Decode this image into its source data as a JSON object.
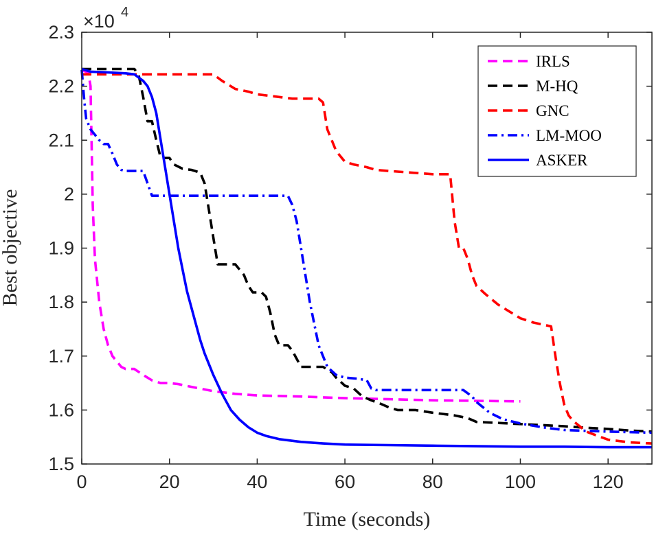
{
  "chart_data": {
    "type": "line",
    "title": "",
    "xlabel": "Time (seconds)",
    "ylabel": "Best objective",
    "xlim": [
      0,
      130
    ],
    "ylim": [
      1.5,
      2.3
    ],
    "xticks": [
      0,
      20,
      40,
      60,
      80,
      100,
      120
    ],
    "yticks": [
      1.5,
      1.6,
      1.7,
      1.8,
      1.9,
      2.0,
      2.1,
      2.2,
      2.3
    ],
    "xtick_labels": [
      "0",
      "20",
      "40",
      "60",
      "80",
      "100",
      "120"
    ],
    "ytick_labels": [
      "1.5",
      "1.6",
      "1.7",
      "1.8",
      "1.9",
      "2",
      "2.1",
      "2.2",
      "2.3"
    ],
    "y_exponent_base": "×10",
    "y_exponent_power": "4",
    "legend_position": "top-right",
    "grid": false,
    "series": [
      {
        "name": "IRLS",
        "color": "#ff00ff",
        "dash": "dashed",
        "points": [
          [
            0,
            2.23
          ],
          [
            1.5,
            2.225
          ],
          [
            2,
            2.2
          ],
          [
            2.5,
            1.98
          ],
          [
            3,
            1.88
          ],
          [
            4,
            1.8
          ],
          [
            5,
            1.75
          ],
          [
            6,
            1.72
          ],
          [
            7,
            1.7
          ],
          [
            8,
            1.69
          ],
          [
            9,
            1.68
          ],
          [
            10,
            1.676
          ],
          [
            12,
            1.676
          ],
          [
            14,
            1.665
          ],
          [
            16,
            1.655
          ],
          [
            18,
            1.65
          ],
          [
            20,
            1.65
          ],
          [
            22,
            1.648
          ],
          [
            25,
            1.643
          ],
          [
            30,
            1.635
          ],
          [
            35,
            1.63
          ],
          [
            40,
            1.627
          ],
          [
            50,
            1.625
          ],
          [
            60,
            1.622
          ],
          [
            70,
            1.62
          ],
          [
            80,
            1.618
          ],
          [
            90,
            1.617
          ],
          [
            100,
            1.616
          ]
        ]
      },
      {
        "name": "M-HQ",
        "color": "#000000",
        "dash": "dashed",
        "points": [
          [
            0,
            2.232
          ],
          [
            12,
            2.232
          ],
          [
            13,
            2.22
          ],
          [
            14,
            2.18
          ],
          [
            15,
            2.135
          ],
          [
            16,
            2.135
          ],
          [
            17,
            2.1
          ],
          [
            18,
            2.067
          ],
          [
            20,
            2.067
          ],
          [
            21,
            2.055
          ],
          [
            23,
            2.047
          ],
          [
            25,
            2.045
          ],
          [
            27,
            2.04
          ],
          [
            28,
            2.02
          ],
          [
            29,
            1.97
          ],
          [
            30,
            1.92
          ],
          [
            31,
            1.87
          ],
          [
            35,
            1.87
          ],
          [
            36,
            1.86
          ],
          [
            37,
            1.85
          ],
          [
            38,
            1.83
          ],
          [
            39,
            1.818
          ],
          [
            41,
            1.818
          ],
          [
            42,
            1.81
          ],
          [
            43,
            1.78
          ],
          [
            44,
            1.74
          ],
          [
            45,
            1.72
          ],
          [
            47,
            1.72
          ],
          [
            48,
            1.71
          ],
          [
            50,
            1.68
          ],
          [
            55,
            1.68
          ],
          [
            57,
            1.67
          ],
          [
            58,
            1.66
          ],
          [
            60,
            1.645
          ],
          [
            62,
            1.64
          ],
          [
            64,
            1.625
          ],
          [
            66,
            1.618
          ],
          [
            68,
            1.612
          ],
          [
            70,
            1.605
          ],
          [
            72,
            1.6
          ],
          [
            76,
            1.6
          ],
          [
            80,
            1.595
          ],
          [
            85,
            1.59
          ],
          [
            88,
            1.585
          ],
          [
            90,
            1.578
          ],
          [
            95,
            1.576
          ],
          [
            100,
            1.574
          ],
          [
            105,
            1.572
          ],
          [
            110,
            1.57
          ],
          [
            115,
            1.567
          ],
          [
            120,
            1.565
          ],
          [
            125,
            1.562
          ],
          [
            130,
            1.56
          ]
        ]
      },
      {
        "name": "GNC",
        "color": "#ff0000",
        "dash": "dashed",
        "points": [
          [
            0,
            2.222
          ],
          [
            30,
            2.222
          ],
          [
            32,
            2.21
          ],
          [
            35,
            2.195
          ],
          [
            38,
            2.19
          ],
          [
            40,
            2.185
          ],
          [
            45,
            2.18
          ],
          [
            48,
            2.177
          ],
          [
            54,
            2.177
          ],
          [
            55,
            2.17
          ],
          [
            56,
            2.12
          ],
          [
            58,
            2.08
          ],
          [
            60,
            2.06
          ],
          [
            62,
            2.055
          ],
          [
            65,
            2.05
          ],
          [
            67,
            2.045
          ],
          [
            70,
            2.043
          ],
          [
            75,
            2.04
          ],
          [
            80,
            2.037
          ],
          [
            84,
            2.037
          ],
          [
            85,
            1.95
          ],
          [
            86,
            1.9
          ],
          [
            87,
            1.9
          ],
          [
            88,
            1.88
          ],
          [
            89,
            1.85
          ],
          [
            90,
            1.83
          ],
          [
            92,
            1.815
          ],
          [
            95,
            1.795
          ],
          [
            98,
            1.78
          ],
          [
            100,
            1.77
          ],
          [
            103,
            1.762
          ],
          [
            107,
            1.755
          ],
          [
            108,
            1.7
          ],
          [
            109,
            1.65
          ],
          [
            110,
            1.61
          ],
          [
            111,
            1.59
          ],
          [
            112,
            1.58
          ],
          [
            115,
            1.56
          ],
          [
            120,
            1.545
          ],
          [
            125,
            1.54
          ],
          [
            130,
            1.538
          ]
        ]
      },
      {
        "name": "LM-MOO",
        "color": "#0000ff",
        "dash": "dashdot",
        "points": [
          [
            0,
            2.23
          ],
          [
            0.5,
            2.18
          ],
          [
            1,
            2.14
          ],
          [
            2,
            2.12
          ],
          [
            3,
            2.11
          ],
          [
            4,
            2.1
          ],
          [
            5,
            2.093
          ],
          [
            6,
            2.093
          ],
          [
            7,
            2.075
          ],
          [
            8,
            2.055
          ],
          [
            9,
            2.045
          ],
          [
            10,
            2.043
          ],
          [
            14,
            2.043
          ],
          [
            15,
            2.02
          ],
          [
            16,
            1.997
          ],
          [
            47,
            1.997
          ],
          [
            48,
            1.98
          ],
          [
            49,
            1.95
          ],
          [
            50,
            1.9
          ],
          [
            51,
            1.85
          ],
          [
            52,
            1.8
          ],
          [
            53,
            1.76
          ],
          [
            54,
            1.72
          ],
          [
            56,
            1.68
          ],
          [
            58,
            1.665
          ],
          [
            60,
            1.66
          ],
          [
            63,
            1.658
          ],
          [
            65,
            1.655
          ],
          [
            66,
            1.64
          ],
          [
            67,
            1.637
          ],
          [
            87,
            1.637
          ],
          [
            89,
            1.625
          ],
          [
            90,
            1.615
          ],
          [
            93,
            1.595
          ],
          [
            96,
            1.583
          ],
          [
            100,
            1.575
          ],
          [
            105,
            1.568
          ],
          [
            110,
            1.563
          ],
          [
            120,
            1.56
          ],
          [
            130,
            1.558
          ]
        ]
      },
      {
        "name": "ASKER",
        "color": "#0000ff",
        "dash": "solid",
        "points": [
          [
            0,
            2.232
          ],
          [
            2,
            2.227
          ],
          [
            5,
            2.226
          ],
          [
            10,
            2.224
          ],
          [
            12,
            2.222
          ],
          [
            14,
            2.21
          ],
          [
            15,
            2.2
          ],
          [
            16,
            2.18
          ],
          [
            17,
            2.15
          ],
          [
            18,
            2.1
          ],
          [
            19,
            2.05
          ],
          [
            20,
            2.0
          ],
          [
            21,
            1.95
          ],
          [
            22,
            1.9
          ],
          [
            23,
            1.86
          ],
          [
            24,
            1.82
          ],
          [
            25,
            1.79
          ],
          [
            26,
            1.76
          ],
          [
            27,
            1.73
          ],
          [
            28,
            1.705
          ],
          [
            30,
            1.665
          ],
          [
            32,
            1.63
          ],
          [
            34,
            1.6
          ],
          [
            36,
            1.582
          ],
          [
            38,
            1.568
          ],
          [
            40,
            1.558
          ],
          [
            42,
            1.552
          ],
          [
            45,
            1.546
          ],
          [
            50,
            1.541
          ],
          [
            55,
            1.538
          ],
          [
            60,
            1.536
          ],
          [
            70,
            1.535
          ],
          [
            80,
            1.534
          ],
          [
            90,
            1.533
          ],
          [
            100,
            1.532
          ],
          [
            110,
            1.532
          ],
          [
            120,
            1.531
          ],
          [
            130,
            1.531
          ]
        ]
      }
    ]
  }
}
